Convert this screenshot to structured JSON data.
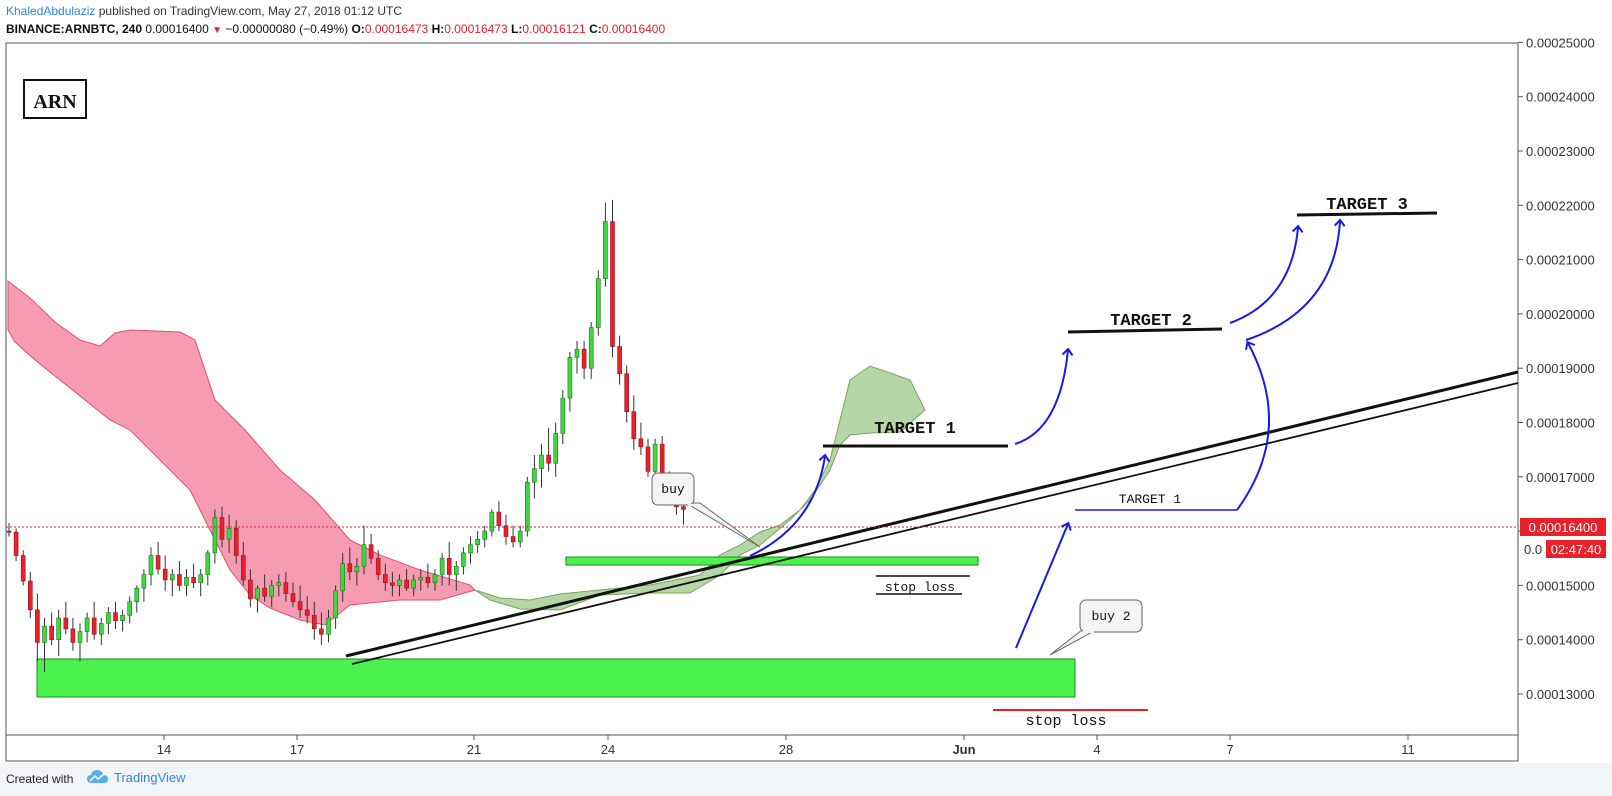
{
  "header": {
    "author": "KhaledAbdulaziz",
    "published_text": "published on TradingView.com, May 27, 2018 01:12 UTC",
    "symbol": "BINANCE:ARNBTC, 240",
    "price": "0.00016400",
    "change": "−0.00000080 (−0.49%)",
    "ohlc": {
      "o_label": "O:",
      "o": "0.00016473",
      "h_label": "H:",
      "h": "0.00016473",
      "l_label": "L:",
      "l": "0.00016121",
      "c_label": "C:",
      "c": "0.00016400"
    }
  },
  "footer": {
    "created_with": "Created with",
    "brand": "TradingView",
    "brand_icon": "tradingview-cloud-icon"
  },
  "colors": {
    "bull": "#3fd63f",
    "bear": "#e8202a",
    "cloud_bear": "#f48aa3",
    "cloud_bull": "#a8cf96",
    "zone": "#4cf24c",
    "price_tag": "#e8202a",
    "arrow": "#1a1ae6",
    "trendline": "#111111"
  },
  "chart_data": {
    "type": "candlestick",
    "symbol": "BINANCE:ARNBTC",
    "timeframe": "240",
    "ylim": [
      0.000126,
      0.0002545
    ],
    "y_ticks": [
      "0.00013000",
      "0.00014000",
      "0.00015000",
      "0.00016000",
      "0.00017000",
      "0.00018000",
      "0.00019000",
      "0.00020000",
      "0.00021000",
      "0.00022000",
      "0.00023000",
      "0.00024000",
      "0.00025000"
    ],
    "x_tick_labels": [
      "14",
      "17",
      "21",
      "24",
      "28",
      "Jun",
      "4",
      "7",
      "11"
    ],
    "last_price": "0.00016400",
    "countdown": "02:47:40",
    "price_axis_partial": "0.0",
    "symbol_box": "ARN",
    "annotations": {
      "target1_upper": "TARGET 1",
      "target2": "TARGET 2",
      "target3": "TARGET 3",
      "target1_lower": "TARGET 1",
      "buy": "buy",
      "buy2": "buy 2",
      "stop_loss_upper": "stop loss",
      "stop_loss_lower": "stop loss"
    },
    "candles": [
      [
        0.00016,
        0.0001615,
        0.000159,
        0.0001598
      ],
      [
        0.0001598,
        0.0001605,
        0.0001545,
        0.0001555
      ],
      [
        0.0001555,
        0.0001565,
        0.00015,
        0.0001508
      ],
      [
        0.0001508,
        0.0001525,
        0.000144,
        0.0001455
      ],
      [
        0.0001455,
        0.0001485,
        0.000136,
        0.0001395
      ],
      [
        0.0001395,
        0.000144,
        0.000134,
        0.0001425
      ],
      [
        0.0001425,
        0.000145,
        0.000139,
        0.00014
      ],
      [
        0.00014,
        0.0001455,
        0.000137,
        0.000144
      ],
      [
        0.000144,
        0.000147,
        0.000141,
        0.000142
      ],
      [
        0.000142,
        0.000144,
        0.000138,
        0.0001395
      ],
      [
        0.0001395,
        0.000143,
        0.000136,
        0.0001415
      ],
      [
        0.0001415,
        0.000145,
        0.0001395,
        0.000144
      ],
      [
        0.000144,
        0.000147,
        0.00014,
        0.000141
      ],
      [
        0.000141,
        0.000144,
        0.000139,
        0.000143
      ],
      [
        0.000143,
        0.000146,
        0.000141,
        0.000145
      ],
      [
        0.000145,
        0.000147,
        0.000142,
        0.0001435
      ],
      [
        0.0001435,
        0.0001455,
        0.0001415,
        0.0001445
      ],
      [
        0.0001445,
        0.000148,
        0.000143,
        0.000147
      ],
      [
        0.000147,
        0.00015,
        0.000145,
        0.0001495
      ],
      [
        0.0001495,
        0.000153,
        0.000147,
        0.000152
      ],
      [
        0.000152,
        0.000157,
        0.00015,
        0.0001555
      ],
      [
        0.0001555,
        0.000158,
        0.000152,
        0.000153
      ],
      [
        0.000153,
        0.0001555,
        0.000149,
        0.000151
      ],
      [
        0.000151,
        0.000153,
        0.000148,
        0.000152
      ],
      [
        0.000152,
        0.0001545,
        0.000149,
        0.00015
      ],
      [
        0.00015,
        0.000153,
        0.000148,
        0.0001515
      ],
      [
        0.0001515,
        0.000154,
        0.0001495,
        0.0001505
      ],
      [
        0.0001505,
        0.000153,
        0.000148,
        0.000152
      ],
      [
        0.000152,
        0.0001565,
        0.00015,
        0.000156
      ],
      [
        0.000156,
        0.000164,
        0.000154,
        0.0001625
      ],
      [
        0.0001625,
        0.0001645,
        0.000157,
        0.0001585
      ],
      [
        0.0001585,
        0.000163,
        0.000156,
        0.0001605
      ],
      [
        0.0001605,
        0.000162,
        0.000154,
        0.0001555
      ],
      [
        0.0001555,
        0.000158,
        0.00015,
        0.000151
      ],
      [
        0.000151,
        0.000153,
        0.000146,
        0.0001475
      ],
      [
        0.0001475,
        0.00015,
        0.000145,
        0.0001495
      ],
      [
        0.0001495,
        0.000152,
        0.000147,
        0.000148
      ],
      [
        0.000148,
        0.000151,
        0.000146,
        0.00015
      ],
      [
        0.00015,
        0.000152,
        0.000148,
        0.0001505
      ],
      [
        0.0001505,
        0.0001525,
        0.000147,
        0.0001485
      ],
      [
        0.0001485,
        0.0001505,
        0.000146,
        0.000147
      ],
      [
        0.000147,
        0.00015,
        0.000144,
        0.0001455
      ],
      [
        0.0001455,
        0.000148,
        0.000143,
        0.0001445
      ],
      [
        0.0001445,
        0.000147,
        0.00014,
        0.000142
      ],
      [
        0.000142,
        0.000145,
        0.000139,
        0.000141
      ],
      [
        0.000141,
        0.0001455,
        0.0001395,
        0.000144
      ],
      [
        0.000144,
        0.00015,
        0.000142,
        0.000149
      ],
      [
        0.000149,
        0.000156,
        0.000147,
        0.000154
      ],
      [
        0.000154,
        0.000157,
        0.000151,
        0.0001525
      ],
      [
        0.0001525,
        0.000155,
        0.00015,
        0.0001535
      ],
      [
        0.0001535,
        0.000161,
        0.000152,
        0.0001575
      ],
      [
        0.0001575,
        0.0001595,
        0.000154,
        0.000155
      ],
      [
        0.000155,
        0.0001565,
        0.000151,
        0.000152
      ],
      [
        0.000152,
        0.000154,
        0.000149,
        0.0001505
      ],
      [
        0.0001505,
        0.0001525,
        0.000148,
        0.00015
      ],
      [
        0.00015,
        0.000152,
        0.000148,
        0.000151
      ],
      [
        0.000151,
        0.000153,
        0.000149,
        0.0001495
      ],
      [
        0.0001495,
        0.000152,
        0.000148,
        0.000151
      ],
      [
        0.000151,
        0.000153,
        0.000149,
        0.0001515
      ],
      [
        0.0001515,
        0.000154,
        0.0001495,
        0.0001505
      ],
      [
        0.0001505,
        0.000153,
        0.000149,
        0.000152
      ],
      [
        0.000152,
        0.000156,
        0.00015,
        0.000155
      ],
      [
        0.000155,
        0.000158,
        0.00015,
        0.000152
      ],
      [
        0.000152,
        0.0001545,
        0.000149,
        0.0001535
      ],
      [
        0.0001535,
        0.000157,
        0.000152,
        0.000156
      ],
      [
        0.000156,
        0.000159,
        0.000154,
        0.0001575
      ],
      [
        0.0001575,
        0.00016,
        0.000156,
        0.0001585
      ],
      [
        0.0001585,
        0.000161,
        0.000157,
        0.00016
      ],
      [
        0.00016,
        0.000164,
        0.000159,
        0.0001635
      ],
      [
        0.0001635,
        0.0001655,
        0.00016,
        0.000161
      ],
      [
        0.000161,
        0.000163,
        0.0001575,
        0.000159
      ],
      [
        0.000159,
        0.000161,
        0.000157,
        0.000158
      ],
      [
        0.000158,
        0.000161,
        0.000157,
        0.00016
      ],
      [
        0.00016,
        0.00017,
        0.000159,
        0.000169
      ],
      [
        0.000169,
        0.000174,
        0.000166,
        0.0001715
      ],
      [
        0.0001715,
        0.000176,
        0.000168,
        0.000174
      ],
      [
        0.000174,
        0.000179,
        0.000171,
        0.0001725
      ],
      [
        0.0001725,
        0.00018,
        0.00017,
        0.000178
      ],
      [
        0.000178,
        0.000186,
        0.000176,
        0.0001845
      ],
      [
        0.0001845,
        0.000193,
        0.000182,
        0.000192
      ],
      [
        0.000192,
        0.000195,
        0.000189,
        0.0001935
      ],
      [
        0.0001935,
        0.000195,
        0.000188,
        0.00019
      ],
      [
        0.00019,
        0.0001985,
        0.000188,
        0.0001975
      ],
      [
        0.0001975,
        0.000208,
        0.000196,
        0.0002065
      ],
      [
        0.0002065,
        0.0002205,
        0.000205,
        0.000217
      ],
      [
        0.000217,
        0.000221,
        0.000192,
        0.000194
      ],
      [
        0.000194,
        0.000196,
        0.000187,
        0.000189
      ],
      [
        0.000189,
        0.0001905,
        0.00018,
        0.000182
      ],
      [
        0.000182,
        0.000185,
        0.000175,
        0.000177
      ],
      [
        0.000177,
        0.00018,
        0.000174,
        0.0001755
      ],
      [
        0.0001755,
        0.000177,
        0.00017,
        0.000171
      ],
      [
        0.000171,
        0.000177,
        0.00017,
        0.000176
      ],
      [
        0.000176,
        0.0001775,
        0.000169,
        0.00017
      ],
      [
        0.00017,
        0.000171,
        0.000166,
        0.0001675
      ],
      [
        0.0001675,
        0.000169,
        0.000163,
        0.0001645
      ],
      [
        0.0001645,
        0.0001655,
        0.0001612,
        0.000164
      ]
    ]
  }
}
